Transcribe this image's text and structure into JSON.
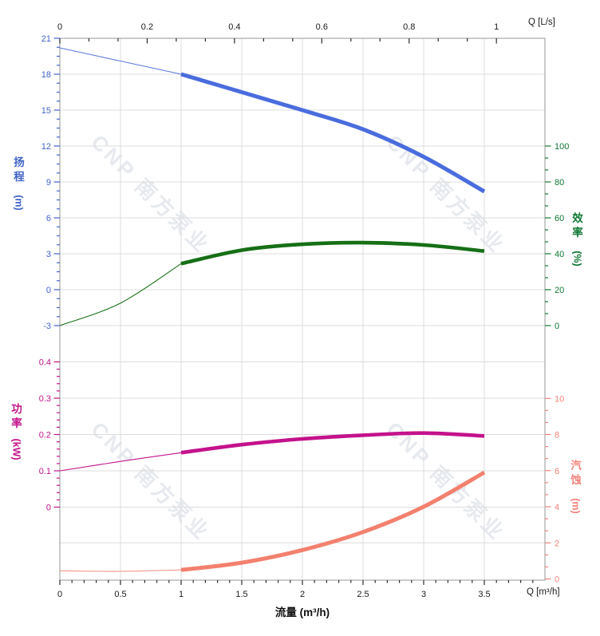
{
  "watermark": {
    "symbol": "≋",
    "text": "CNP 南方泵业"
  },
  "axes": {
    "top": {
      "label": "Q [L/s]",
      "ticks": [
        0,
        0.2,
        0.4,
        0.6,
        0.8,
        1
      ],
      "color": "#1a1a1a"
    },
    "bottom": {
      "label": "Q [m³/h]",
      "title": "流量 (m³/h)",
      "ticks": [
        0,
        0.5,
        1,
        1.5,
        2,
        2.5,
        3,
        3.5
      ],
      "color": "#1a1a1a"
    },
    "head": {
      "title": "扬程",
      "unit": "(m)",
      "color": "#4164c8",
      "ticks": [
        21,
        18,
        15,
        12,
        9,
        6,
        3,
        0,
        -3
      ]
    },
    "eff": {
      "title": "效率",
      "unit": "(%)",
      "color": "#117734",
      "ticks": [
        100,
        80,
        60,
        40,
        20,
        0
      ]
    },
    "power": {
      "title": "功率",
      "unit": "(kW)",
      "color": "#c2138a",
      "ticks": [
        0.4,
        0.3,
        0.2,
        0.1,
        0
      ]
    },
    "npsh": {
      "title": "汽蚀",
      "unit": "(m)",
      "color": "#f4837b",
      "ticks": [
        10,
        8,
        6,
        4,
        2,
        0
      ]
    }
  },
  "chart_data": {
    "type": "line",
    "title": "",
    "xlabel_bottom": "流量 (m³/h)",
    "xlabel_top": "Q [L/s]",
    "x_units": {
      "bottom": "m³/h",
      "top": "L/s"
    },
    "x_range_m3h": [
      0,
      4
    ],
    "x_range_Ls": [
      0,
      1.111
    ],
    "grid": true,
    "thick_from_x": 1,
    "x": [
      0,
      0.5,
      1,
      1.5,
      2,
      2.5,
      3,
      3.5
    ],
    "series": [
      {
        "name": "head",
        "label": "扬程",
        "unit": "m",
        "axis": "head",
        "color": "#4a6cde",
        "thin_color": "#5b79dc",
        "ylim": [
          -3,
          21
        ],
        "values": [
          20.2,
          19.1,
          18.0,
          16.5,
          15.0,
          13.4,
          11.1,
          8.2
        ]
      },
      {
        "name": "eff",
        "label": "效率",
        "unit": "%",
        "axis": "eff",
        "color": "#166f16",
        "thin_color": "#166f16",
        "ylim": [
          0,
          100
        ],
        "values": [
          0,
          12.5,
          34.5,
          42.0,
          45.3,
          46.2,
          44.9,
          41.5
        ]
      },
      {
        "name": "power",
        "label": "功率",
        "unit": "kW",
        "axis": "power",
        "color": "#c4128c",
        "thin_color": "#c4128c",
        "ylim": [
          0,
          0.4
        ],
        "values": [
          0.1,
          0.126,
          0.15,
          0.172,
          0.188,
          0.198,
          0.204,
          0.196
        ]
      },
      {
        "name": "npsh",
        "label": "汽蚀",
        "unit": "m",
        "axis": "npsh",
        "color": "#f3806e",
        "thin_color": "#f5968a",
        "ylim": [
          0,
          10
        ],
        "values": [
          0.45,
          0.42,
          0.5,
          0.9,
          1.6,
          2.6,
          4.0,
          5.9
        ]
      }
    ],
    "legend": "none"
  }
}
